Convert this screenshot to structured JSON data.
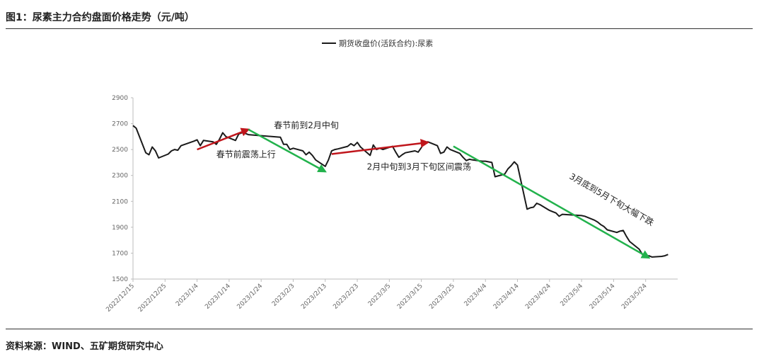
{
  "header": {
    "title": "图1：尿素主力合约盘面价格走势（元/吨）"
  },
  "footer": {
    "source": "资料来源：WIND、五矿期货研究中心"
  },
  "chart_data": {
    "type": "line",
    "title": "",
    "xlabel": "",
    "ylabel": "",
    "ylim": [
      1500,
      2900
    ],
    "yticks": [
      1500,
      1700,
      1900,
      2100,
      2300,
      2500,
      2700,
      2900
    ],
    "xticks": [
      "2022/12/15",
      "2022/12/25",
      "2023/1/4",
      "2023/1/14",
      "2023/1/24",
      "2023/2/3",
      "2023/2/13",
      "2023/2/23",
      "2023/3/5",
      "2023/3/15",
      "2023/3/25",
      "2023/4/4",
      "2023/4/14",
      "2023/4/24",
      "2023/5/4",
      "2023/5/14",
      "2023/5/24"
    ],
    "legend": {
      "position": "top-center",
      "label": "期货收盘价(活跃合约):尿素"
    },
    "grid": false,
    "x_start": "2022-12-15",
    "series": [
      {
        "name": "期货收盘价(活跃合约):尿素",
        "color": "#1a1a1a",
        "points": [
          [
            "2022-12-15",
            2685
          ],
          [
            "2022-12-16",
            2665
          ],
          [
            "2022-12-19",
            2475
          ],
          [
            "2022-12-20",
            2460
          ],
          [
            "2022-12-21",
            2520
          ],
          [
            "2022-12-22",
            2490
          ],
          [
            "2022-12-23",
            2435
          ],
          [
            "2022-12-26",
            2465
          ],
          [
            "2022-12-27",
            2490
          ],
          [
            "2022-12-28",
            2500
          ],
          [
            "2022-12-29",
            2495
          ],
          [
            "2022-12-30",
            2530
          ],
          [
            "2023-01-03",
            2565
          ],
          [
            "2023-01-04",
            2575
          ],
          [
            "2023-01-05",
            2530
          ],
          [
            "2023-01-06",
            2570
          ],
          [
            "2023-01-09",
            2560
          ],
          [
            "2023-01-10",
            2540
          ],
          [
            "2023-01-11",
            2580
          ],
          [
            "2023-01-12",
            2630
          ],
          [
            "2023-01-13",
            2600
          ],
          [
            "2023-01-16",
            2570
          ],
          [
            "2023-01-17",
            2620
          ],
          [
            "2023-01-18",
            2630
          ],
          [
            "2023-01-19",
            2625
          ],
          [
            "2023-01-20",
            2615
          ],
          [
            "2023-01-30",
            2595
          ],
          [
            "2023-01-31",
            2540
          ],
          [
            "2023-02-01",
            2540
          ],
          [
            "2023-02-02",
            2500
          ],
          [
            "2023-02-03",
            2510
          ],
          [
            "2023-02-06",
            2490
          ],
          [
            "2023-02-07",
            2460
          ],
          [
            "2023-02-08",
            2480
          ],
          [
            "2023-02-09",
            2455
          ],
          [
            "2023-02-10",
            2420
          ],
          [
            "2023-02-13",
            2370
          ],
          [
            "2023-02-14",
            2420
          ],
          [
            "2023-02-15",
            2490
          ],
          [
            "2023-02-16",
            2500
          ],
          [
            "2023-02-17",
            2505
          ],
          [
            "2023-02-20",
            2525
          ],
          [
            "2023-02-21",
            2545
          ],
          [
            "2023-02-22",
            2530
          ],
          [
            "2023-02-23",
            2555
          ],
          [
            "2023-02-24",
            2520
          ],
          [
            "2023-02-27",
            2455
          ],
          [
            "2023-02-28",
            2535
          ],
          [
            "2023-03-01",
            2500
          ],
          [
            "2023-03-02",
            2510
          ],
          [
            "2023-03-03",
            2500
          ],
          [
            "2023-03-06",
            2525
          ],
          [
            "2023-03-07",
            2480
          ],
          [
            "2023-03-08",
            2440
          ],
          [
            "2023-03-09",
            2460
          ],
          [
            "2023-03-10",
            2475
          ],
          [
            "2023-03-13",
            2490
          ],
          [
            "2023-03-14",
            2480
          ],
          [
            "2023-03-15",
            2515
          ],
          [
            "2023-03-16",
            2555
          ],
          [
            "2023-03-17",
            2560
          ],
          [
            "2023-03-20",
            2530
          ],
          [
            "2023-03-21",
            2470
          ],
          [
            "2023-03-22",
            2480
          ],
          [
            "2023-03-23",
            2520
          ],
          [
            "2023-03-24",
            2500
          ],
          [
            "2023-03-27",
            2470
          ],
          [
            "2023-03-28",
            2440
          ],
          [
            "2023-03-29",
            2415
          ],
          [
            "2023-03-30",
            2425
          ],
          [
            "2023-03-31",
            2420
          ],
          [
            "2023-04-03",
            2410
          ],
          [
            "2023-04-04",
            2410
          ],
          [
            "2023-04-06",
            2400
          ],
          [
            "2023-04-07",
            2290
          ],
          [
            "2023-04-10",
            2310
          ],
          [
            "2023-04-11",
            2350
          ],
          [
            "2023-04-12",
            2375
          ],
          [
            "2023-04-13",
            2405
          ],
          [
            "2023-04-14",
            2380
          ],
          [
            "2023-04-17",
            2040
          ],
          [
            "2023-04-18",
            2050
          ],
          [
            "2023-04-19",
            2055
          ],
          [
            "2023-04-20",
            2085
          ],
          [
            "2023-04-21",
            2075
          ],
          [
            "2023-04-24",
            2030
          ],
          [
            "2023-04-25",
            2020
          ],
          [
            "2023-04-26",
            2010
          ],
          [
            "2023-04-27",
            1985
          ],
          [
            "2023-04-28",
            2000
          ],
          [
            "2023-05-04",
            1990
          ],
          [
            "2023-05-05",
            1985
          ],
          [
            "2023-05-08",
            1955
          ],
          [
            "2023-05-09",
            1940
          ],
          [
            "2023-05-10",
            1920
          ],
          [
            "2023-05-11",
            1905
          ],
          [
            "2023-05-12",
            1880
          ],
          [
            "2023-05-15",
            1860
          ],
          [
            "2023-05-16",
            1870
          ],
          [
            "2023-05-17",
            1875
          ],
          [
            "2023-05-18",
            1830
          ],
          [
            "2023-05-19",
            1790
          ],
          [
            "2023-05-22",
            1730
          ],
          [
            "2023-05-23",
            1690
          ],
          [
            "2023-05-24",
            1670
          ],
          [
            "2023-05-25",
            1680
          ],
          [
            "2023-05-26",
            1670
          ],
          [
            "2023-05-29",
            1675
          ],
          [
            "2023-05-30",
            1680
          ],
          [
            "2023-05-31",
            1690
          ]
        ]
      }
    ],
    "annotations": [
      {
        "text": "春节前震荡上行",
        "color": "#c0161c",
        "from": [
          "2023-01-04",
          2500
        ],
        "to": [
          "2023-01-20",
          2655
        ],
        "label_at": [
          "2023-01-10",
          2440
        ],
        "rotate": 0
      },
      {
        "text": "春节前到2月中旬",
        "color": "#22b24c",
        "from": [
          "2023-01-20",
          2655
        ],
        "to": [
          "2023-02-13",
          2330
        ],
        "label_at": [
          "2023-01-28",
          2665
        ],
        "rotate": 0
      },
      {
        "text": "2月中旬到3月下旬区间震荡",
        "color": "#c0161c",
        "from": [
          "2023-02-15",
          2465
        ],
        "to": [
          "2023-03-17",
          2555
        ],
        "label_at": [
          "2023-02-26",
          2345
        ],
        "rotate": 0
      },
      {
        "text": "3月底到5月下旬大幅下跌",
        "color": "#22b24c",
        "from": [
          "2023-03-25",
          2525
        ],
        "to": [
          "2023-05-25",
          1665
        ],
        "label_at": [
          "2023-04-30",
          2280
        ],
        "rotate": 30
      }
    ]
  }
}
